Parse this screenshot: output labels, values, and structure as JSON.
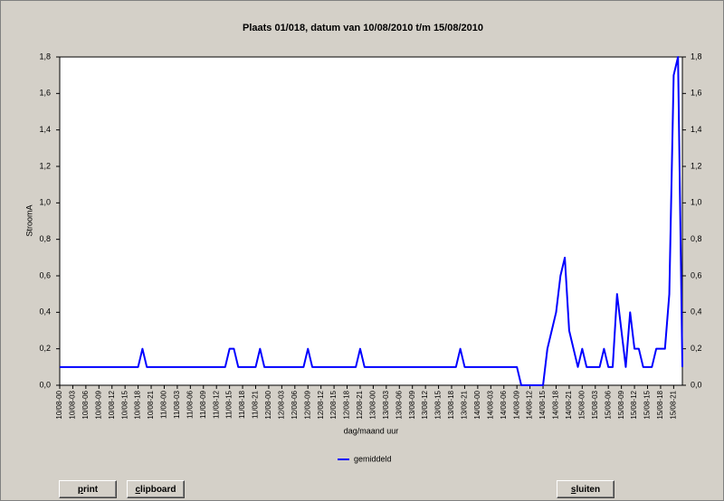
{
  "chart_data": {
    "type": "line",
    "title": "Plaats 01/018, datum van 10/08/2010 t/m 15/08/2010",
    "y_label": "StroomA",
    "x_label": "dag/maand uur",
    "categories": [
      "10/08-00",
      null,
      null,
      "10/08-03",
      null,
      null,
      "10/08-06",
      null,
      null,
      "10/08-09",
      null,
      null,
      "10/08-12",
      null,
      null,
      "10/08-15",
      null,
      null,
      "10/08-18",
      null,
      null,
      "10/08-21",
      null,
      null,
      "11/08-00",
      null,
      null,
      "11/08-03",
      null,
      null,
      "11/08-06",
      null,
      null,
      "11/08-09",
      null,
      null,
      "11/08-12",
      null,
      null,
      "11/08-15",
      null,
      null,
      "11/08-18",
      null,
      null,
      "11/08-21",
      null,
      null,
      "12/08-00",
      null,
      null,
      "12/08-03",
      null,
      null,
      "12/08-06",
      null,
      null,
      "12/08-09",
      null,
      null,
      "12/08-12",
      null,
      null,
      "12/08-15",
      null,
      null,
      "12/08-18",
      null,
      null,
      "12/08-21",
      null,
      null,
      "13/08-00",
      null,
      null,
      "13/08-03",
      null,
      null,
      "13/08-06",
      null,
      null,
      "13/08-09",
      null,
      null,
      "13/08-12",
      null,
      null,
      "13/08-15",
      null,
      null,
      "13/08-18",
      null,
      null,
      "13/08-21",
      null,
      null,
      "14/08-00",
      null,
      null,
      "14/08-03",
      null,
      null,
      "14/08-06",
      null,
      null,
      "14/08-09",
      null,
      null,
      "14/08-12",
      null,
      null,
      "14/08-15",
      null,
      null,
      "14/08-18",
      null,
      null,
      "14/08-21",
      null,
      null,
      "15/08-00",
      null,
      null,
      "15/08-03",
      null,
      null,
      "15/08-06",
      null,
      null,
      "15/08-09",
      null,
      null,
      "15/08-12",
      null,
      null,
      "15/08-15",
      null,
      null,
      "15/08-18",
      null,
      null,
      "15/08-21",
      null,
      null
    ],
    "series": [
      {
        "name": "gemiddeld",
        "color": "#0000ff",
        "values": [
          0.1,
          0.1,
          0.1,
          0.1,
          0.1,
          0.1,
          0.1,
          0.1,
          0.1,
          0.1,
          0.1,
          0.1,
          0.1,
          0.1,
          0.1,
          0.1,
          0.1,
          0.1,
          0.1,
          0.2,
          0.1,
          0.1,
          0.1,
          0.1,
          0.1,
          0.1,
          0.1,
          0.1,
          0.1,
          0.1,
          0.1,
          0.1,
          0.1,
          0.1,
          0.1,
          0.1,
          0.1,
          0.1,
          0.1,
          0.2,
          0.2,
          0.1,
          0.1,
          0.1,
          0.1,
          0.1,
          0.2,
          0.1,
          0.1,
          0.1,
          0.1,
          0.1,
          0.1,
          0.1,
          0.1,
          0.1,
          0.1,
          0.2,
          0.1,
          0.1,
          0.1,
          0.1,
          0.1,
          0.1,
          0.1,
          0.1,
          0.1,
          0.1,
          0.1,
          0.2,
          0.1,
          0.1,
          0.1,
          0.1,
          0.1,
          0.1,
          0.1,
          0.1,
          0.1,
          0.1,
          0.1,
          0.1,
          0.1,
          0.1,
          0.1,
          0.1,
          0.1,
          0.1,
          0.1,
          0.1,
          0.1,
          0.1,
          0.2,
          0.1,
          0.1,
          0.1,
          0.1,
          0.1,
          0.1,
          0.1,
          0.1,
          0.1,
          0.1,
          0.1,
          0.1,
          0.1,
          0,
          0,
          0,
          0,
          0,
          0,
          0.2,
          0.3,
          0.4,
          0.6,
          0.7,
          0.3,
          0.2,
          0.1,
          0.2,
          0.1,
          0.1,
          0.1,
          0.1,
          0.2,
          0.1,
          0.1,
          0.5,
          0.3,
          0.1,
          0.4,
          0.2,
          0.2,
          0.1,
          0.1,
          0.1,
          0.2,
          0.2,
          0.2,
          0.5,
          1.7,
          1.8,
          0.1
        ]
      }
    ],
    "ylim": [
      0,
      1.8
    ],
    "yticks": [
      {
        "value": 0,
        "label": "0,0"
      },
      {
        "value": 0.2,
        "label": "0,2"
      },
      {
        "value": 0.4,
        "label": "0,4"
      },
      {
        "value": 0.6,
        "label": "0,6"
      },
      {
        "value": 0.8,
        "label": "0,8"
      },
      {
        "value": 1.0,
        "label": "1,0"
      },
      {
        "value": 1.2,
        "label": "1,2"
      },
      {
        "value": 1.4,
        "label": "1,4"
      },
      {
        "value": 1.6,
        "label": "1,6"
      },
      {
        "value": 1.8,
        "label": "1,8"
      }
    ],
    "y2lim": [
      0,
      1.8
    ],
    "y2ticks": [
      {
        "value": 0,
        "label": "0,0"
      },
      {
        "value": 0.2,
        "label": "0,2"
      },
      {
        "value": 0.4,
        "label": "0,4"
      },
      {
        "value": 0.6,
        "label": "0,6"
      },
      {
        "value": 0.8,
        "label": "0,8"
      },
      {
        "value": 1.0,
        "label": "1,0"
      },
      {
        "value": 1.2,
        "label": "1,2"
      },
      {
        "value": 1.4,
        "label": "1,4"
      },
      {
        "value": 1.6,
        "label": "1,6"
      },
      {
        "value": 1.8,
        "label": "1,8"
      }
    ],
    "legend": "bottom",
    "grid": false
  },
  "buttons": [
    "print",
    "clipboard",
    "sluiten"
  ]
}
